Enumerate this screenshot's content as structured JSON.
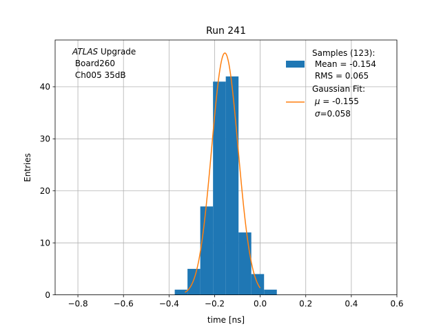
{
  "chart_data": {
    "type": "bar",
    "title": "Run 241",
    "xlabel": "time [ns]",
    "ylabel": "Entries",
    "xlim": [
      -0.9,
      0.6
    ],
    "ylim": [
      0,
      49
    ],
    "grid": true,
    "xticks": [
      -0.8,
      -0.6,
      -0.4,
      -0.2,
      0.0,
      0.2,
      0.4,
      0.6
    ],
    "xtick_labels": [
      "−0.8",
      "−0.6",
      "−0.4",
      "−0.2",
      "0.0",
      "0.2",
      "0.4",
      "0.6"
    ],
    "yticks": [
      0,
      10,
      20,
      30,
      40
    ],
    "ytick_labels": [
      "0",
      "10",
      "20",
      "30",
      "40"
    ],
    "annotation": {
      "line1_italic": "ATLAS",
      "line1_rest": " Upgrade",
      "line2": " Board260",
      "line3": " Ch005 35dB"
    },
    "histogram": {
      "color": "#1f77b4",
      "bins": [
        {
          "x0": -0.375,
          "x1": -0.319,
          "count": 1
        },
        {
          "x0": -0.319,
          "x1": -0.263,
          "count": 5
        },
        {
          "x0": -0.263,
          "x1": -0.207,
          "count": 17
        },
        {
          "x0": -0.207,
          "x1": -0.151,
          "count": 41
        },
        {
          "x0": -0.151,
          "x1": -0.095,
          "count": 42
        },
        {
          "x0": -0.095,
          "x1": -0.039,
          "count": 12
        },
        {
          "x0": -0.039,
          "x1": 0.017,
          "count": 4
        },
        {
          "x0": 0.017,
          "x1": 0.073,
          "count": 1
        }
      ]
    },
    "fit": {
      "color": "#ff7f0e",
      "mu": -0.155,
      "sigma": 0.058,
      "amplitude": 46.5,
      "x_range": [
        -0.33,
        0.0
      ]
    },
    "legend": {
      "placement": "top-right",
      "samples": [
        "Samples (123):",
        " Mean = -0.154",
        " RMS = 0.065"
      ],
      "fit_title": "Gaussian Fit:",
      "fit_mu_symbol": "μ",
      "fit_mu_rest": " = -0.155",
      "fit_sigma_symbol": "σ",
      "fit_sigma_rest": "=0.058"
    }
  }
}
